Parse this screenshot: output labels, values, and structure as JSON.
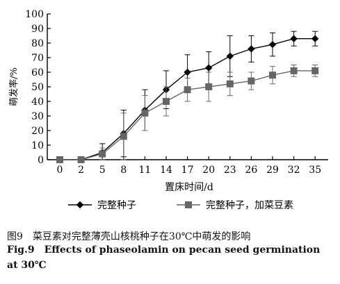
{
  "chart_data": {
    "type": "line",
    "x": [
      0,
      2,
      5,
      8,
      11,
      14,
      17,
      20,
      23,
      26,
      29,
      32,
      35
    ],
    "xlabel": "置床时间/d",
    "ylabel": "萌发率/%",
    "ylim": [
      0,
      100
    ],
    "yticks": [
      0,
      10,
      20,
      30,
      40,
      50,
      60,
      70,
      80,
      90,
      100
    ],
    "grid": false,
    "legend_position": "bottom",
    "series": [
      {
        "name": "完整种子",
        "marker": "diamond",
        "color": "#000000",
        "values": [
          0,
          0,
          5,
          18,
          34,
          48,
          60,
          63,
          71,
          76,
          79,
          83,
          83
        ],
        "errors": [
          0,
          0,
          6,
          16,
          14,
          13,
          12,
          11,
          14,
          9,
          8,
          5,
          5
        ]
      },
      {
        "name": "完整种子，加菜豆素",
        "marker": "square",
        "color": "#666666",
        "values": [
          0,
          0,
          4,
          16,
          32,
          40,
          48,
          50,
          52,
          54,
          58,
          61,
          61
        ],
        "errors": [
          0,
          0,
          4,
          16,
          12,
          10,
          8,
          10,
          8,
          6,
          6,
          4,
          4
        ]
      }
    ]
  },
  "caption": {
    "cn_number": "图9",
    "cn_text": "菜豆素对完整薄壳山核桃种子在30℃中萌发的影响",
    "en_number": "Fig.9",
    "en_text": "Effects of phaseolamin on pecan seed germination",
    "en_text2": "at 30℃"
  }
}
